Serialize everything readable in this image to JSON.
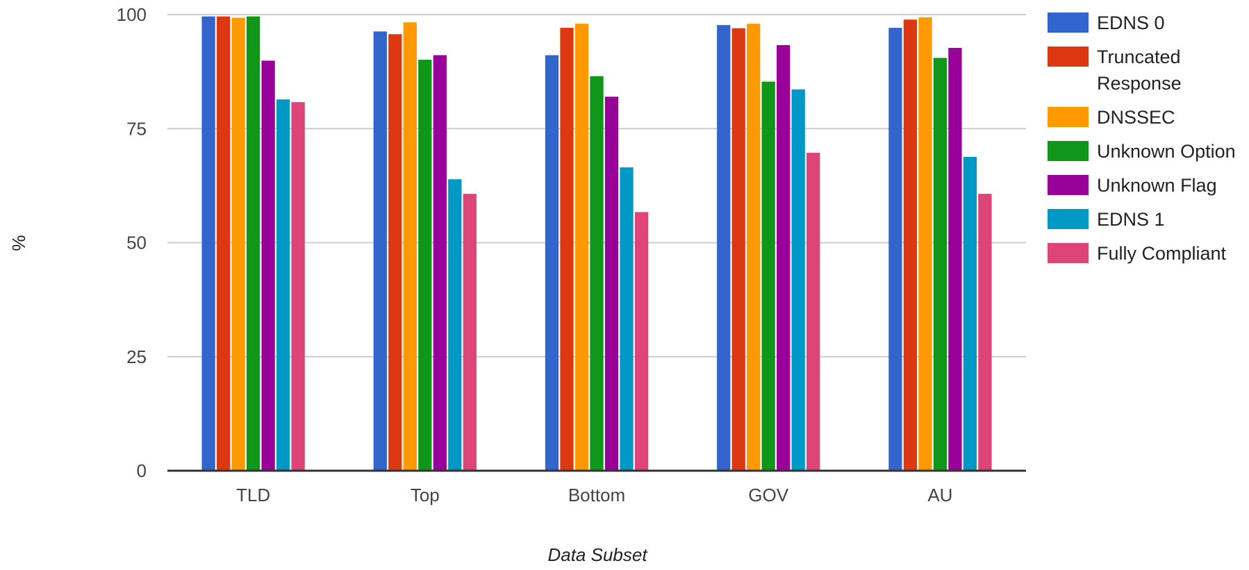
{
  "chart_data": {
    "type": "bar",
    "title": "",
    "xlabel": "Data Subset",
    "ylabel": "%",
    "ylim": [
      0,
      100
    ],
    "yticks": [
      0,
      25,
      50,
      75,
      100
    ],
    "grid": true,
    "legend_position": "right",
    "categories": [
      "TLD",
      "Top",
      "Bottom",
      "GOV",
      "AU"
    ],
    "series": [
      {
        "name": "EDNS 0",
        "color": "#3366cc",
        "values": [
          99.6,
          96.3,
          91.1,
          97.7,
          97.1
        ]
      },
      {
        "name": "Truncated Response",
        "color": "#dc3912",
        "values": [
          99.6,
          95.7,
          97.1,
          97.0,
          98.9
        ]
      },
      {
        "name": "DNSSEC",
        "color": "#ff9900",
        "values": [
          99.3,
          98.3,
          98.0,
          98.0,
          99.4
        ]
      },
      {
        "name": "Unknown Option",
        "color": "#109618",
        "values": [
          99.6,
          90.1,
          86.5,
          85.3,
          90.5
        ]
      },
      {
        "name": "Unknown Flag",
        "color": "#990099",
        "values": [
          89.9,
          91.1,
          82.0,
          93.3,
          92.7
        ]
      },
      {
        "name": "EDNS 1",
        "color": "#0099c6",
        "values": [
          81.4,
          63.9,
          66.5,
          83.6,
          68.8
        ]
      },
      {
        "name": "Fully Compliant",
        "color": "#dd4477",
        "values": [
          80.8,
          60.7,
          56.7,
          69.7,
          60.7
        ]
      }
    ]
  }
}
